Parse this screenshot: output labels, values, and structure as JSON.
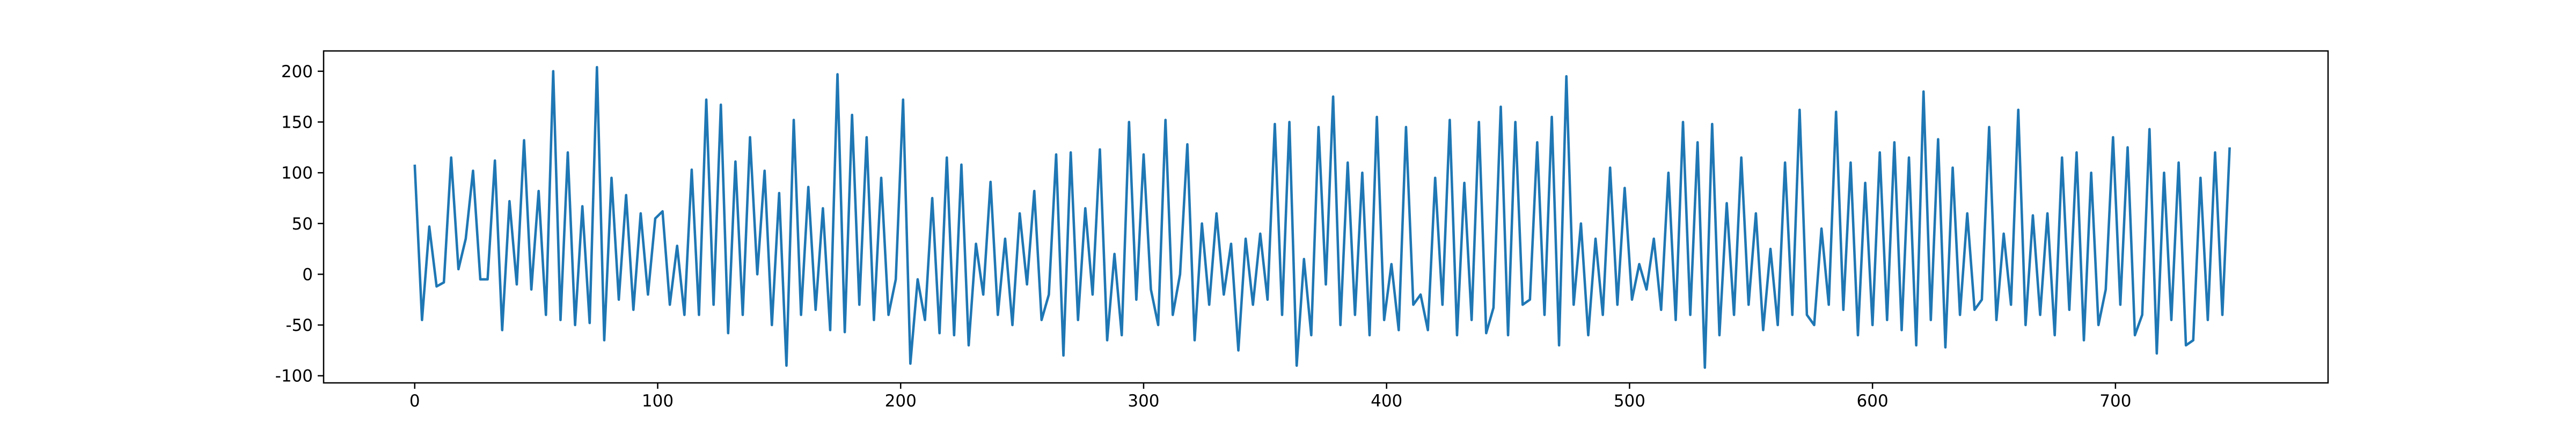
{
  "chart_data": {
    "type": "line",
    "x": [
      0,
      3,
      6,
      9,
      12,
      15,
      18,
      21,
      24,
      27,
      30,
      33,
      36,
      39,
      42,
      45,
      48,
      51,
      54,
      57,
      60,
      63,
      66,
      69,
      72,
      75,
      78,
      81,
      84,
      87,
      90,
      93,
      96,
      99,
      102,
      105,
      108,
      111,
      114,
      117,
      120,
      123,
      126,
      129,
      132,
      135,
      138,
      141,
      144,
      147,
      150,
      153,
      156,
      159,
      162,
      165,
      168,
      171,
      174,
      177,
      180,
      183,
      186,
      189,
      192,
      195,
      198,
      201,
      204,
      207,
      210,
      213,
      216,
      219,
      222,
      225,
      228,
      231,
      234,
      237,
      240,
      243,
      246,
      249,
      252,
      255,
      258,
      261,
      264,
      267,
      270,
      273,
      276,
      279,
      282,
      285,
      288,
      291,
      294,
      297,
      300,
      303,
      306,
      309,
      312,
      315,
      318,
      321,
      324,
      327,
      330,
      333,
      336,
      339,
      342,
      345,
      348,
      351,
      354,
      357,
      360,
      363,
      366,
      369,
      372,
      375,
      378,
      381,
      384,
      387,
      390,
      393,
      396,
      399,
      402,
      405,
      408,
      411,
      414,
      417,
      420,
      423,
      426,
      429,
      432,
      435,
      438,
      441,
      444,
      447,
      450,
      453,
      456,
      459,
      462,
      465,
      468,
      471,
      474,
      477,
      480,
      483,
      486,
      489,
      492,
      495,
      498,
      501,
      504,
      507,
      510,
      513,
      516,
      519,
      522,
      525,
      528,
      531,
      534,
      537,
      540,
      543,
      546,
      549,
      552,
      555,
      558,
      561,
      564,
      567,
      570,
      573,
      576,
      579,
      582,
      585,
      588,
      591,
      594,
      597,
      600,
      603,
      606,
      609,
      612,
      615,
      618,
      621,
      624,
      627,
      630,
      633,
      636,
      639,
      642,
      645,
      648,
      651,
      654,
      657,
      660,
      663,
      666,
      669,
      672,
      675,
      678,
      681,
      684,
      687,
      690,
      693,
      696,
      699,
      702,
      705,
      708,
      711,
      714,
      717,
      720,
      723,
      726,
      729,
      732,
      735,
      738,
      741,
      744,
      747
    ],
    "series": [
      {
        "color": "#1f77b4",
        "values": [
          108,
          -45,
          47,
          -12,
          -8,
          115,
          5,
          35,
          102,
          -5,
          -5,
          112,
          -55,
          72,
          -10,
          132,
          -15,
          82,
          -40,
          200,
          -45,
          120,
          -50,
          67,
          -48,
          204,
          -65,
          95,
          -25,
          78,
          -35,
          60,
          -20,
          55,
          62,
          -30,
          28,
          -40,
          103,
          -40,
          172,
          -30,
          167,
          -58,
          111,
          -40,
          135,
          0,
          102,
          -50,
          80,
          -90,
          152,
          -40,
          86,
          -35,
          65,
          -55,
          197,
          -57,
          157,
          -30,
          135,
          -45,
          95,
          -40,
          -5,
          172,
          -88,
          -5,
          -45,
          75,
          -58,
          115,
          -60,
          108,
          -70,
          30,
          -20,
          91,
          -40,
          35,
          -50,
          60,
          -10,
          82,
          -45,
          -20,
          118,
          -80,
          120,
          -45,
          65,
          -20,
          123,
          -65,
          20,
          -60,
          150,
          -25,
          118,
          -15,
          -50,
          152,
          -40,
          0,
          128,
          -65,
          50,
          -30,
          60,
          -20,
          30,
          -75,
          35,
          -30,
          40,
          -25,
          148,
          -40,
          150,
          -90,
          15,
          -60,
          145,
          -10,
          175,
          -50,
          110,
          -40,
          100,
          -60,
          155,
          -45,
          10,
          -55,
          145,
          -30,
          -20,
          -55,
          95,
          -30,
          152,
          -60,
          90,
          -45,
          150,
          -58,
          -33,
          165,
          -60,
          150,
          -30,
          -25,
          130,
          -40,
          155,
          -70,
          195,
          -30,
          50,
          -60,
          35,
          -40,
          105,
          -30,
          85,
          -25,
          10,
          -15,
          35,
          -35,
          100,
          -45,
          150,
          -40,
          130,
          -92,
          148,
          -60,
          70,
          -40,
          115,
          -30,
          60,
          -55,
          25,
          -50,
          110,
          -40,
          162,
          -40,
          -50,
          45,
          -30,
          160,
          -35,
          110,
          -60,
          90,
          -50,
          120,
          -45,
          130,
          -55,
          115,
          -70,
          180,
          -45,
          133,
          -72,
          105,
          -40,
          60,
          -35,
          -25,
          145,
          -45,
          40,
          -30,
          162,
          -50,
          58,
          -40,
          60,
          -60,
          115,
          -35,
          120,
          -65,
          100,
          -50,
          -15,
          135,
          -30,
          125,
          -60,
          -40,
          143,
          -78,
          100,
          -45,
          110,
          -70,
          -65,
          95,
          -45,
          120,
          -40,
          125
        ]
      }
    ],
    "xlim": [
      -37.5,
      787.5
    ],
    "xticks": [
      0,
      100,
      200,
      300,
      400,
      500,
      600,
      700
    ],
    "ylim": [
      -107,
      220
    ],
    "yticks": [
      -100,
      -50,
      0,
      50,
      100,
      150,
      200
    ]
  }
}
